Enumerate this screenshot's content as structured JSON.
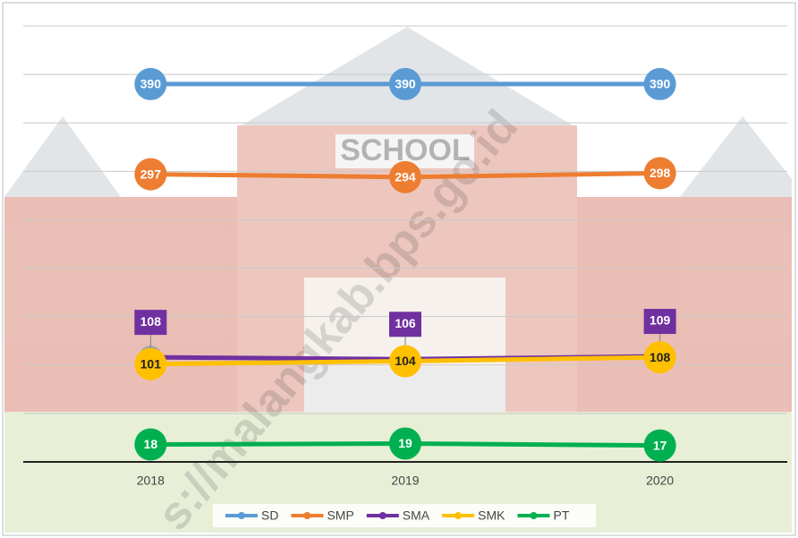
{
  "chart_data": {
    "type": "line",
    "categories": [
      "2018",
      "2019",
      "2020"
    ],
    "series": [
      {
        "name": "SD",
        "color": "#5b9bd5",
        "values": [
          390,
          390,
          390
        ]
      },
      {
        "name": "SMP",
        "color": "#ed7d31",
        "values": [
          297,
          294,
          298
        ]
      },
      {
        "name": "SMA",
        "color": "#7030a0",
        "values": [
          108,
          106,
          109
        ]
      },
      {
        "name": "SMK",
        "color": "#ffc000",
        "values": [
          101,
          104,
          108
        ]
      },
      {
        "name": "PT",
        "color": "#00b050",
        "values": [
          18,
          19,
          17
        ]
      }
    ],
    "ylim": [
      0,
      450
    ],
    "yticks": [
      0,
      50,
      100,
      150,
      200,
      250,
      300,
      350,
      400,
      450
    ],
    "grid": true,
    "legend": "bottom",
    "watermark": "s://malangkab.bps.go.id",
    "background_sign": "SCHOOL"
  }
}
